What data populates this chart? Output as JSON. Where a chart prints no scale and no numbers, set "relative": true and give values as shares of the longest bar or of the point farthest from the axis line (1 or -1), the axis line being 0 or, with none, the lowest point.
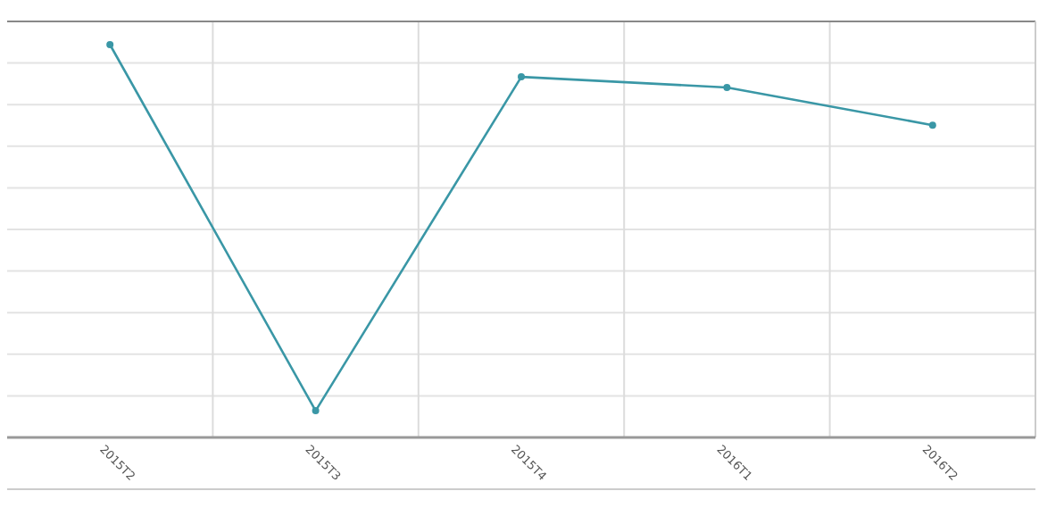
{
  "chart_data": {
    "type": "line",
    "categories": [
      "2015T2",
      "2015T3",
      "2015T4",
      "2016T1",
      "2016T2"
    ],
    "series": [
      {
        "color": "#3a97a6",
        "values": [
          1,
          0.068,
          0.918,
          0.891,
          0.795
        ]
      }
    ],
    "relative": true,
    "grid": true,
    "marker": "circle",
    "line_style": "solid"
  }
}
